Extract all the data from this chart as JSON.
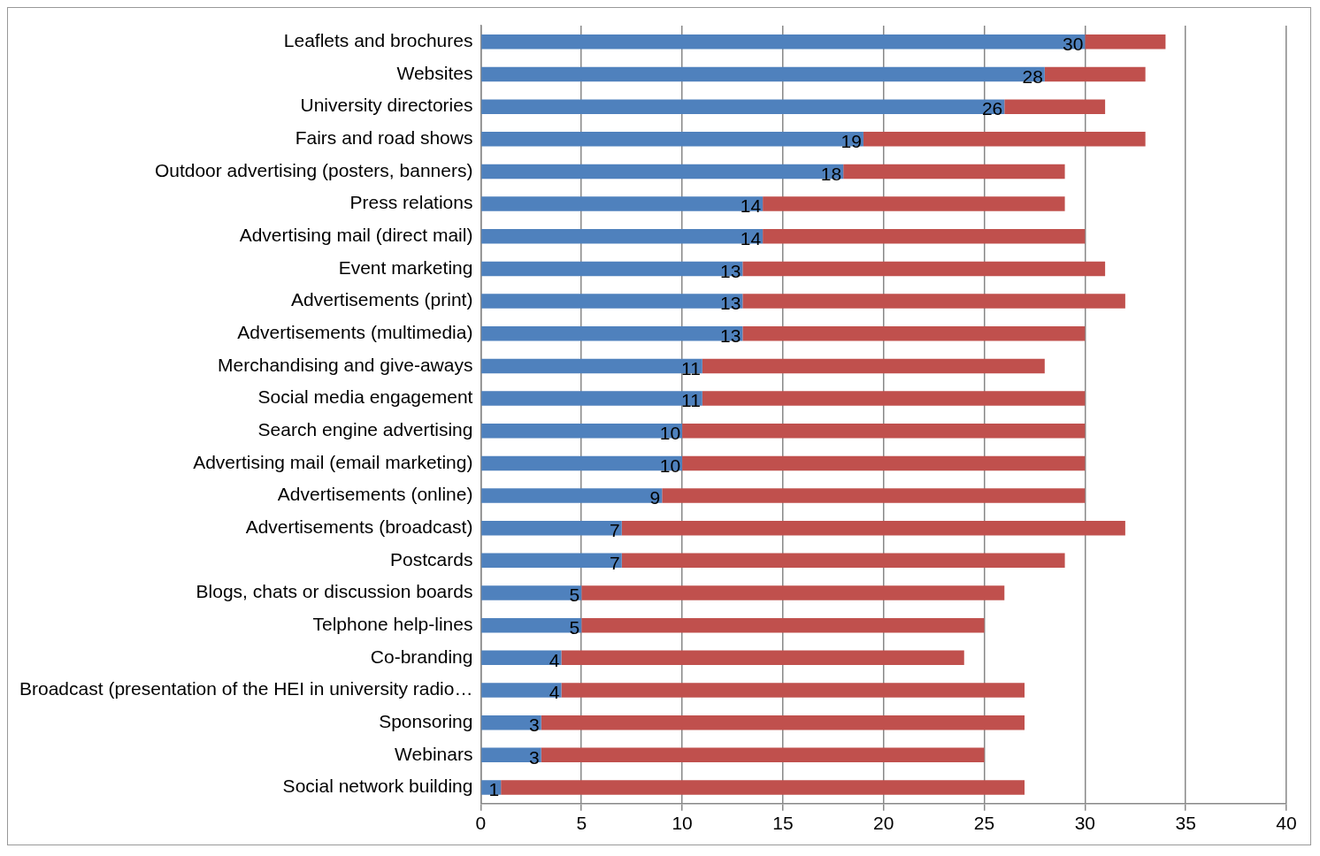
{
  "chart_data": {
    "type": "bar",
    "orientation": "horizontal",
    "stacked": true,
    "grid": "x",
    "legend": false,
    "categories": [
      "Leaflets and brochures",
      "Websites",
      "University directories",
      "Fairs and road shows",
      "Outdoor advertising (posters, banners)",
      "Press relations",
      "Advertising mail (direct mail)",
      "Event marketing",
      "Advertisements (print)",
      "Advertisements (multimedia)",
      "Merchandising and give-aways",
      "Social media engagement",
      "Search engine advertising",
      "Advertising mail (email marketing)",
      "Advertisements (online)",
      "Advertisements (broadcast)",
      "Postcards",
      "Blogs, chats or discussion boards",
      "Telphone help-lines",
      "Co-branding",
      "Broadcast (presentation of the HEI in university radio…",
      "Sponsoring",
      "Webinars",
      "Social network building"
    ],
    "series": [
      {
        "color": "#4f81bd",
        "values": [
          30,
          28,
          26,
          19,
          18,
          14,
          14,
          13,
          13,
          13,
          11,
          11,
          10,
          10,
          9,
          7,
          7,
          5,
          5,
          4,
          4,
          3,
          3,
          1
        ],
        "value_labels": [
          "30",
          "28",
          "26",
          "19",
          "18",
          "14",
          "14",
          "13",
          "13",
          "13",
          "11",
          "11",
          "10",
          "10",
          "9",
          "7",
          "7",
          "5",
          "5",
          "4",
          "4",
          "3",
          "3",
          "1"
        ]
      },
      {
        "color": "#c0504d",
        "values": [
          4,
          5,
          5,
          14,
          11,
          15,
          16,
          18,
          19,
          17,
          17,
          19,
          20,
          20,
          21,
          25,
          22,
          21,
          20,
          20,
          23,
          24,
          22,
          26
        ]
      }
    ],
    "xlim": [
      0,
      40
    ],
    "xticks": [
      0,
      5,
      10,
      15,
      20,
      25,
      30,
      35,
      40
    ]
  }
}
